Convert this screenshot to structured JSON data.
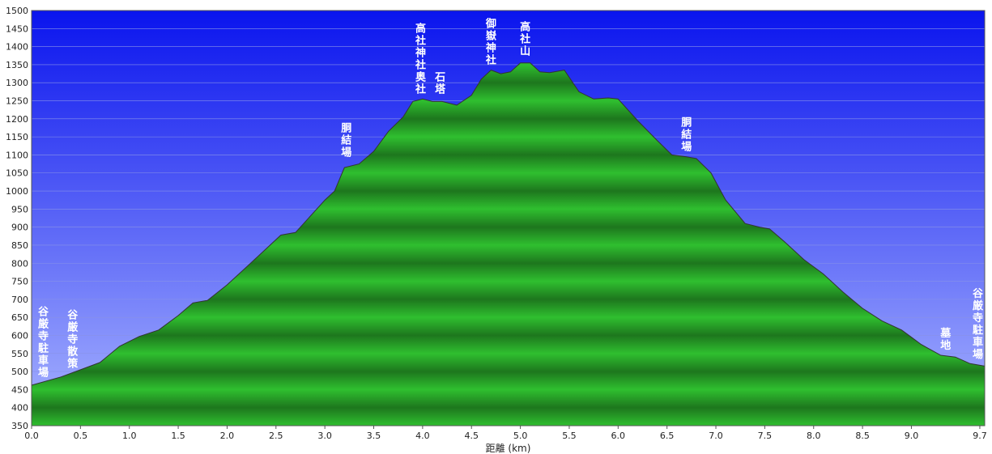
{
  "chart_data": {
    "type": "area",
    "title": "",
    "xlabel": "距離 (km)",
    "ylabel": "",
    "xlim": [
      0,
      9.75
    ],
    "ylim": [
      350,
      1500
    ],
    "xticks": [
      "0.0",
      "0.5",
      "1.0",
      "1.5",
      "2.0",
      "2.5",
      "3.0",
      "3.5",
      "4.0",
      "4.5",
      "5.0",
      "5.5",
      "6.0",
      "6.5",
      "7.0",
      "7.5",
      "8.0",
      "8.5",
      "9.0",
      "9.7"
    ],
    "yticks": [
      350,
      400,
      450,
      500,
      550,
      600,
      650,
      700,
      750,
      800,
      850,
      900,
      950,
      1000,
      1050,
      1100,
      1150,
      1200,
      1250,
      1300,
      1350,
      1400,
      1450,
      1500
    ],
    "grid": true,
    "colors": {
      "fill": "#2fbf2f",
      "sky_top": "#0a14ee",
      "sky_bottom": "#a8b4ff",
      "outline": "#333333"
    },
    "profile": [
      [
        0.0,
        462
      ],
      [
        0.3,
        485
      ],
      [
        0.5,
        505
      ],
      [
        0.7,
        525
      ],
      [
        0.9,
        570
      ],
      [
        1.1,
        597
      ],
      [
        1.3,
        615
      ],
      [
        1.5,
        655
      ],
      [
        1.65,
        690
      ],
      [
        1.8,
        697
      ],
      [
        2.0,
        740
      ],
      [
        2.2,
        790
      ],
      [
        2.4,
        840
      ],
      [
        2.55,
        878
      ],
      [
        2.7,
        885
      ],
      [
        2.9,
        945
      ],
      [
        3.0,
        975
      ],
      [
        3.1,
        1000
      ],
      [
        3.2,
        1065
      ],
      [
        3.35,
        1075
      ],
      [
        3.5,
        1110
      ],
      [
        3.65,
        1165
      ],
      [
        3.8,
        1205
      ],
      [
        3.9,
        1248
      ],
      [
        4.0,
        1255
      ],
      [
        4.1,
        1248
      ],
      [
        4.2,
        1248
      ],
      [
        4.35,
        1238
      ],
      [
        4.5,
        1265
      ],
      [
        4.6,
        1310
      ],
      [
        4.7,
        1335
      ],
      [
        4.8,
        1325
      ],
      [
        4.9,
        1330
      ],
      [
        5.0,
        1355
      ],
      [
        5.1,
        1355
      ],
      [
        5.2,
        1330
      ],
      [
        5.3,
        1328
      ],
      [
        5.45,
        1335
      ],
      [
        5.6,
        1275
      ],
      [
        5.75,
        1255
      ],
      [
        5.9,
        1258
      ],
      [
        6.0,
        1255
      ],
      [
        6.2,
        1195
      ],
      [
        6.4,
        1140
      ],
      [
        6.55,
        1100
      ],
      [
        6.7,
        1095
      ],
      [
        6.8,
        1090
      ],
      [
        6.95,
        1050
      ],
      [
        7.1,
        975
      ],
      [
        7.3,
        910
      ],
      [
        7.45,
        900
      ],
      [
        7.55,
        895
      ],
      [
        7.7,
        860
      ],
      [
        7.9,
        810
      ],
      [
        8.1,
        770
      ],
      [
        8.3,
        720
      ],
      [
        8.5,
        675
      ],
      [
        8.7,
        640
      ],
      [
        8.9,
        615
      ],
      [
        9.0,
        595
      ],
      [
        9.1,
        575
      ],
      [
        9.2,
        560
      ],
      [
        9.3,
        545
      ],
      [
        9.45,
        540
      ],
      [
        9.6,
        522
      ],
      [
        9.75,
        515
      ]
    ],
    "annotations": [
      {
        "text": "谷厳寺駐車場",
        "x": 0.12,
        "y": 470
      },
      {
        "text": "谷厳寺散策",
        "x": 0.42,
        "y": 495
      },
      {
        "text": "胴結場",
        "x": 3.22,
        "y": 1080
      },
      {
        "text": "高社神社奥社",
        "x": 3.98,
        "y": 1255
      },
      {
        "text": "石塔",
        "x": 4.18,
        "y": 1255
      },
      {
        "text": "御嶽神社",
        "x": 4.7,
        "y": 1335
      },
      {
        "text": "高社山",
        "x": 5.05,
        "y": 1360
      },
      {
        "text": "胴結場",
        "x": 6.7,
        "y": 1095
      },
      {
        "text": "墓地",
        "x": 9.35,
        "y": 545
      },
      {
        "text": "谷厳寺駐車場",
        "x": 9.68,
        "y": 520
      }
    ]
  }
}
